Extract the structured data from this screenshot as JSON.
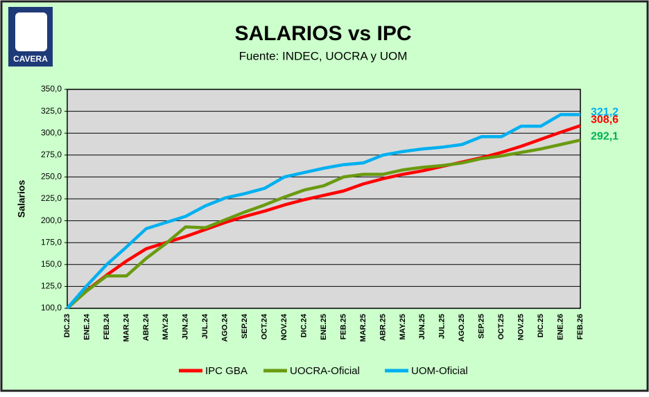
{
  "logo": {
    "text": "CAVERA"
  },
  "chart_data": {
    "type": "line",
    "title": "SALARIOS vs IPC",
    "subtitle": "Fuente: INDEC, UOCRA y UOM",
    "y_label": "Salarios",
    "categories": [
      "DIC.23",
      "ENE.24",
      "FEB.24",
      "MAR.24",
      "ABR.24",
      "MAY.24",
      "JUN.24",
      "JUL.24",
      "AGO.24",
      "SEP.24",
      "OCT.24",
      "NOV.24",
      "DIC.24",
      "ENE.25",
      "FEB.25",
      "MAR.25",
      "ABR.25",
      "MAY.25",
      "JUN.25",
      "JUL.25",
      "AGO.25",
      "SEP.25",
      "OCT.25",
      "NOV.25",
      "DIC.25",
      "ENE.26",
      "FEB.26"
    ],
    "ylim": [
      100,
      350
    ],
    "yticks": [
      {
        "value": 100,
        "label": "100,0"
      },
      {
        "value": 125,
        "label": "125,0"
      },
      {
        "value": 150,
        "label": "150,0"
      },
      {
        "value": 175,
        "label": "175,0"
      },
      {
        "value": 200,
        "label": "200,0"
      },
      {
        "value": 225,
        "label": "225,0"
      },
      {
        "value": 250,
        "label": "250,0"
      },
      {
        "value": 275,
        "label": "275,0"
      },
      {
        "value": 300,
        "label": "300,0"
      },
      {
        "value": 325,
        "label": "325,0"
      },
      {
        "value": 350,
        "label": "350,0"
      }
    ],
    "grid": true,
    "legend": "bottom",
    "series": [
      {
        "name": "IPC GBA",
        "color": "#ff0000",
        "label_color": "#ff0000",
        "values": [
          100,
          120.6,
          138,
          154,
          168,
          175,
          182,
          190,
          198,
          205,
          211,
          218,
          224,
          229,
          234,
          242,
          248,
          253,
          257,
          262,
          267,
          272,
          278,
          285,
          293,
          301,
          308.6
        ],
        "value_labels": [
          null,
          null,
          null,
          null,
          null,
          null,
          null,
          null,
          null,
          null,
          null,
          null,
          null,
          null,
          null,
          null,
          null,
          null,
          null,
          null,
          null,
          null,
          null,
          null,
          null,
          null,
          "308,6"
        ]
      },
      {
        "name": "UOCRA-Oficial",
        "color": "#6a9a10",
        "label_color": "#00b050",
        "values": [
          100,
          120,
          137,
          137,
          157,
          174,
          193,
          192,
          201,
          210,
          218,
          227,
          235,
          240,
          250,
          253,
          253,
          258,
          261,
          263,
          266,
          271,
          274,
          278,
          282,
          287,
          292.1
        ],
        "value_labels": [
          null,
          null,
          null,
          null,
          null,
          null,
          null,
          null,
          null,
          null,
          null,
          null,
          null,
          null,
          null,
          null,
          null,
          null,
          null,
          null,
          null,
          null,
          null,
          null,
          null,
          null,
          "292,1"
        ]
      },
      {
        "name": "UOM-Oficial",
        "color": "#00b0f0",
        "label_color": "#00b0f0",
        "values": [
          100,
          126,
          150,
          170,
          191,
          198,
          205,
          217,
          226,
          231,
          237,
          250,
          255,
          260,
          264,
          266,
          275,
          279,
          282,
          284,
          287,
          296,
          296,
          308,
          308,
          321.2,
          321.2
        ],
        "value_labels": [
          null,
          null,
          null,
          null,
          null,
          null,
          null,
          null,
          null,
          null,
          null,
          null,
          null,
          null,
          null,
          null,
          null,
          null,
          null,
          null,
          null,
          null,
          null,
          null,
          null,
          null,
          "321,2"
        ]
      }
    ]
  }
}
